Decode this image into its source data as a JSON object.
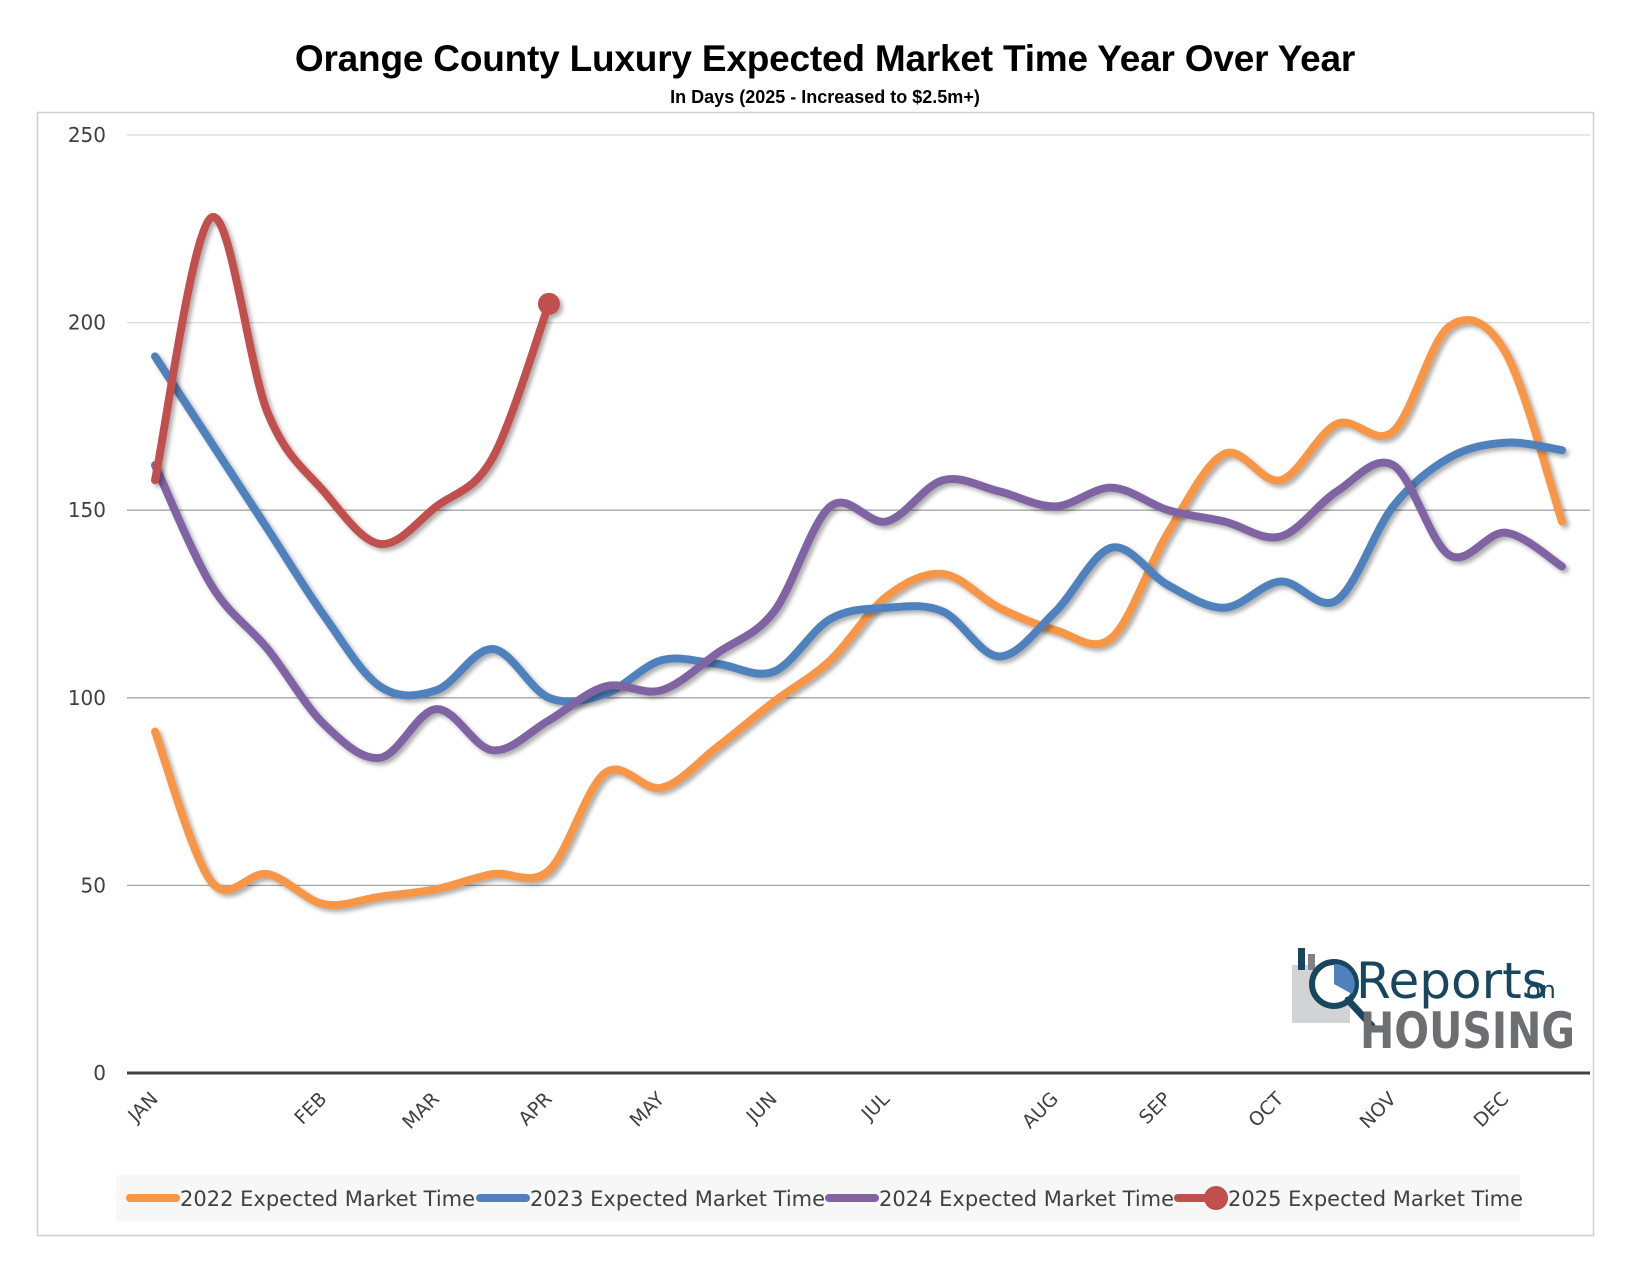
{
  "chart_data": {
    "type": "line",
    "title": "Orange County Luxury Expected Market Time Year Over Year",
    "subtitle": "In Days (2025 - Increased to $2.5m+)",
    "xlabel": "",
    "ylabel": "",
    "ylim": [
      0,
      250
    ],
    "yticks": [
      0,
      50,
      100,
      150,
      200,
      250
    ],
    "grid": true,
    "smooth": true,
    "legend_position": "bottom",
    "categories": [
      "JAN",
      "",
      "",
      "FEB",
      "",
      "MAR",
      "",
      "APR",
      "",
      "MAY",
      "",
      "JUN",
      "",
      "JUL",
      "",
      "",
      "AUG",
      "",
      "SEP",
      "",
      "OCT",
      "",
      "NOV",
      "",
      "DEC",
      ""
    ],
    "series": [
      {
        "name": "2022 Expected Market Time",
        "color": "#f79646",
        "marker": "none",
        "values": [
          91,
          51,
          53,
          45,
          47,
          49,
          53,
          54,
          80,
          76,
          87,
          99,
          110,
          127,
          133,
          124,
          118,
          116,
          144,
          165,
          158,
          173,
          171,
          199,
          192,
          147
        ]
      },
      {
        "name": "2023 Expected Market Time",
        "color": "#4f81bd",
        "marker": "none",
        "values": [
          191,
          168,
          145,
          122,
          103,
          102,
          113,
          100,
          101,
          110,
          109,
          107,
          121,
          124,
          123,
          111,
          123,
          140,
          130,
          124,
          131,
          126,
          151,
          164,
          168,
          166
        ]
      },
      {
        "name": "2024 Expected Market Time",
        "color": "#8064a2",
        "marker": "none",
        "values": [
          162,
          130,
          113,
          93,
          84,
          97,
          86,
          94,
          103,
          102,
          112,
          123,
          151,
          147,
          158,
          155,
          151,
          156,
          150,
          147,
          143,
          155,
          162,
          138,
          144,
          135
        ]
      },
      {
        "name": "2025 Expected Market Time",
        "color": "#c0504d",
        "marker": "circle-last-point",
        "values": [
          158,
          228,
          176,
          155,
          141,
          151,
          164,
          205
        ]
      }
    ]
  },
  "watermark": {
    "line1": "Reports",
    "line1_suffix": "on",
    "line2": "HOUSING",
    "icon": "magnifier-chart-icon"
  }
}
